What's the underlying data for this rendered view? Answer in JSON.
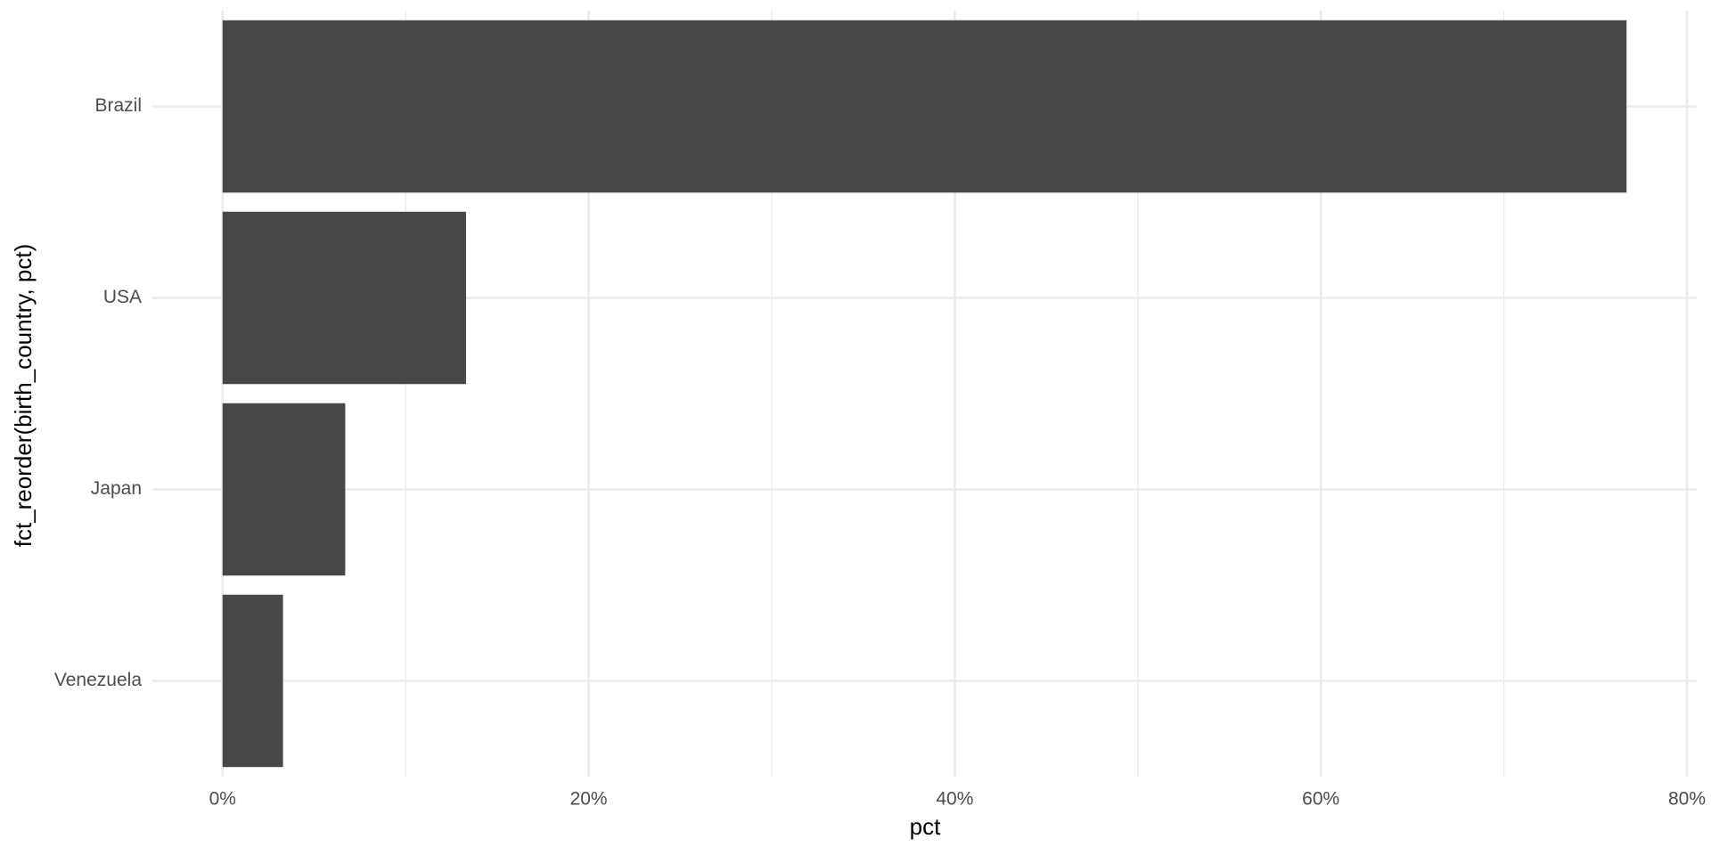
{
  "chart_data": {
    "type": "hbar",
    "x_label": "pct",
    "y_label": "fct_reorder(birth_country, pct)",
    "categories": [
      "Brazil",
      "USA",
      "Japan",
      "Venezuela"
    ],
    "values": [
      76.7,
      13.3,
      6.7,
      3.3
    ],
    "color": "#474747",
    "xlim": [
      -3.835,
      80.535
    ],
    "xticks": [
      {
        "value": 0,
        "label": "0%"
      },
      {
        "value": 20,
        "label": "20%"
      },
      {
        "value": 40,
        "label": "40%"
      },
      {
        "value": 60,
        "label": "60%"
      },
      {
        "value": 80,
        "label": "80%"
      }
    ],
    "grid": true
  }
}
